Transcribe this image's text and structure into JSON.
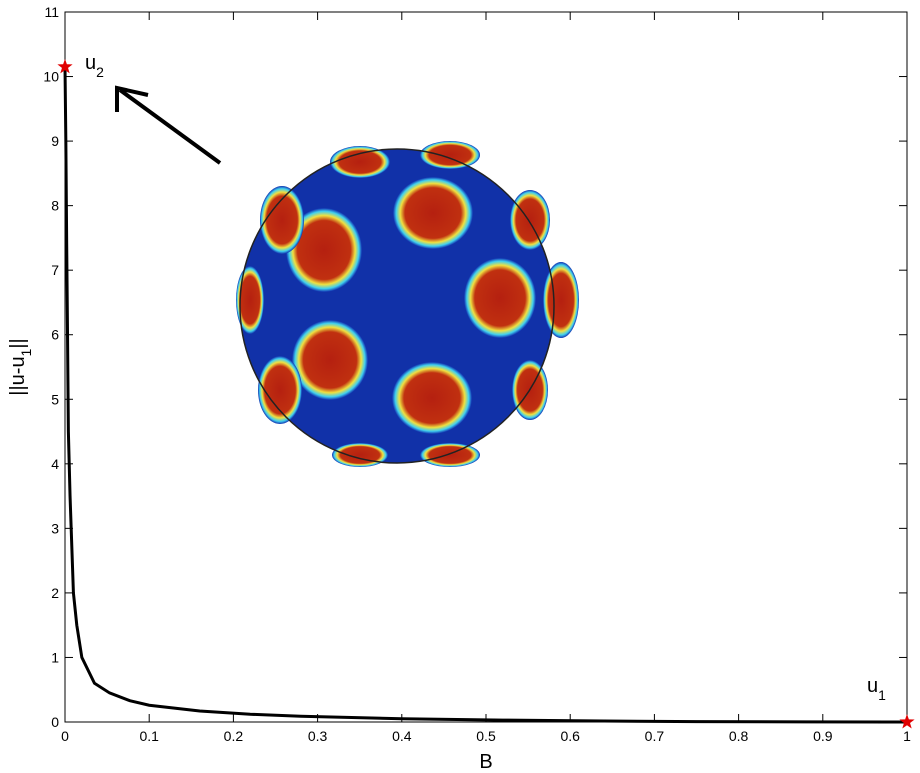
{
  "chart_data": {
    "type": "line",
    "xlabel": "B",
    "ylabel": {
      "main": "||u-u",
      "sub": "1",
      "end": "||"
    },
    "x": [
      0,
      0.001,
      0.002,
      0.003,
      0.004,
      0.006,
      0.01,
      0.014,
      0.02,
      0.035,
      0.053,
      0.077,
      0.1,
      0.16,
      0.22,
      0.28,
      0.4,
      0.52,
      0.64,
      0.75,
      0.88,
      1
    ],
    "series": [
      {
        "color": "#000000",
        "values": [
          10.15,
          9.0,
          7.4,
          6.0,
          4.5,
          3.5,
          2.0,
          1.5,
          1.0,
          0.6,
          0.45,
          0.33,
          0.26,
          0.17,
          0.12,
          0.09,
          0.05,
          0.03,
          0.015,
          0.005,
          0.002,
          0
        ]
      }
    ],
    "markers": {
      "x": [
        0,
        1
      ],
      "y": [
        10.15,
        0
      ],
      "color": "#e00000"
    },
    "annotations": [
      {
        "text": "u",
        "sub": "2"
      },
      {
        "text": "u",
        "sub": "1"
      }
    ],
    "xlim": [
      0,
      1
    ],
    "ylim": [
      0,
      11
    ],
    "xticks": [
      0,
      0.1,
      0.2,
      0.3,
      0.4,
      0.5,
      0.6,
      0.7,
      0.8,
      0.9,
      1
    ],
    "yticks": [
      0,
      1,
      2,
      3,
      4,
      5,
      6,
      7,
      8,
      9,
      10,
      11
    ]
  }
}
